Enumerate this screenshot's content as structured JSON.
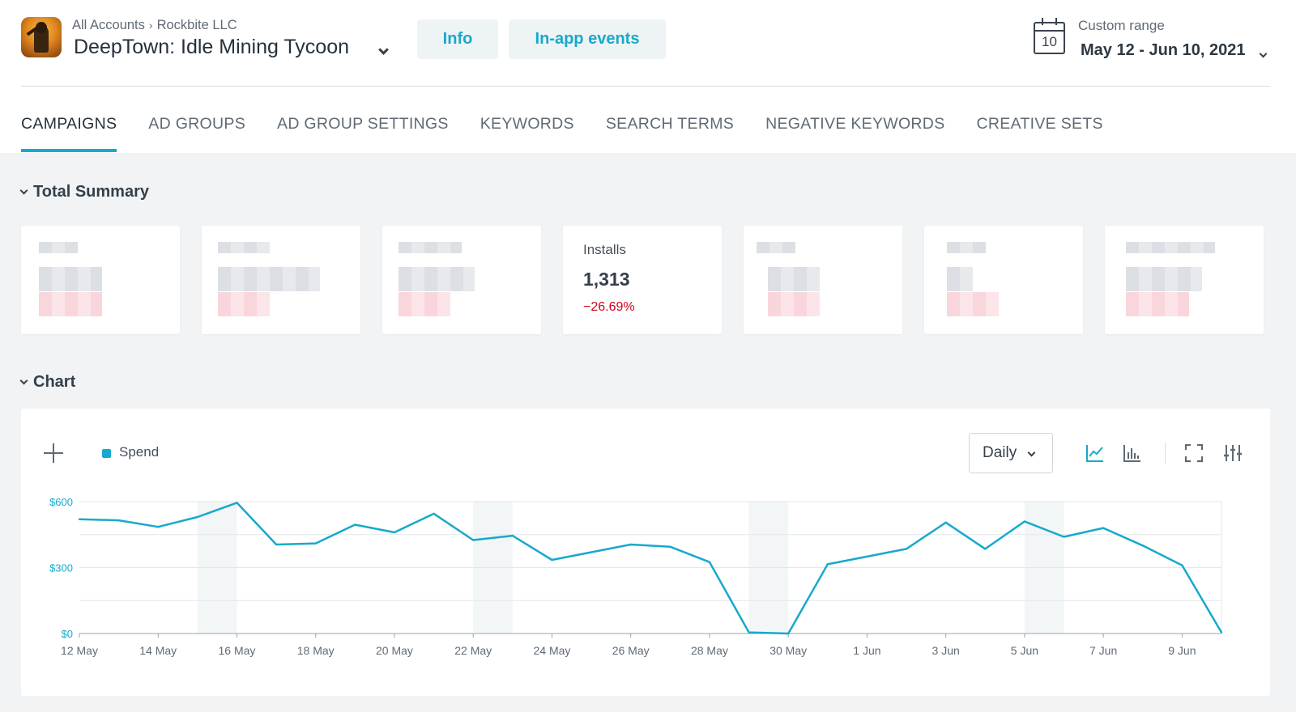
{
  "header": {
    "breadcrumb": {
      "root": "All Accounts",
      "separator": "›",
      "org": "Rockbite LLC"
    },
    "app_name": "DeepTown: Idle Mining Tycoon",
    "buttons": {
      "info": "Info",
      "events": "In-app events"
    },
    "date_range": {
      "label": "Custom range",
      "calendar_day": "10",
      "value": "May 12 - Jun 10, 2021"
    }
  },
  "tabs": [
    {
      "label": "CAMPAIGNS",
      "active": true
    },
    {
      "label": "AD GROUPS",
      "active": false
    },
    {
      "label": "AD GROUP SETTINGS",
      "active": false
    },
    {
      "label": "KEYWORDS",
      "active": false
    },
    {
      "label": "SEARCH TERMS",
      "active": false
    },
    {
      "label": "NEGATIVE KEYWORDS",
      "active": false
    },
    {
      "label": "CREATIVE SETS",
      "active": false
    }
  ],
  "summary": {
    "title": "Total Summary",
    "installs": {
      "label": "Installs",
      "value": "1,313",
      "delta": "−26.69%"
    }
  },
  "chart_section": {
    "title": "Chart",
    "granularity": "Daily"
  },
  "colors": {
    "accent": "#17a9cc",
    "negative": "#d0021b",
    "weekend_band": "#f2f6f7"
  },
  "chart_data": {
    "type": "line",
    "legend": "top-left",
    "grid": true,
    "series": [
      {
        "name": "Spend",
        "color": "#17a9cc",
        "values": [
          520,
          515,
          485,
          530,
          595,
          405,
          410,
          495,
          460,
          545,
          425,
          445,
          335,
          370,
          405,
          395,
          325,
          5,
          0,
          315,
          350,
          385,
          505,
          385,
          510,
          440,
          480,
          400,
          310,
          5
        ]
      }
    ],
    "x": [
      "12 May",
      "13 May",
      "14 May",
      "15 May",
      "16 May",
      "17 May",
      "18 May",
      "19 May",
      "20 May",
      "21 May",
      "22 May",
      "23 May",
      "24 May",
      "25 May",
      "26 May",
      "27 May",
      "28 May",
      "29 May",
      "30 May",
      "31 May",
      "1 Jun",
      "2 Jun",
      "3 Jun",
      "4 Jun",
      "5 Jun",
      "6 Jun",
      "7 Jun",
      "8 Jun",
      "9 Jun",
      "10 Jun"
    ],
    "x_tick_labels": [
      "12 May",
      "14 May",
      "16 May",
      "18 May",
      "20 May",
      "22 May",
      "24 May",
      "26 May",
      "28 May",
      "30 May",
      "1 Jun",
      "3 Jun",
      "5 Jun",
      "7 Jun",
      "9 Jun"
    ],
    "y_tick_labels": [
      "$600",
      "$300",
      "$0"
    ],
    "y_ticks": [
      600,
      300,
      0
    ],
    "ylim": [
      0,
      600
    ],
    "shaded_weeks": [
      [
        "15 May",
        "16 May"
      ],
      [
        "22 May",
        "23 May"
      ],
      [
        "29 May",
        "30 May"
      ],
      [
        "5 Jun",
        "6 Jun"
      ]
    ]
  }
}
